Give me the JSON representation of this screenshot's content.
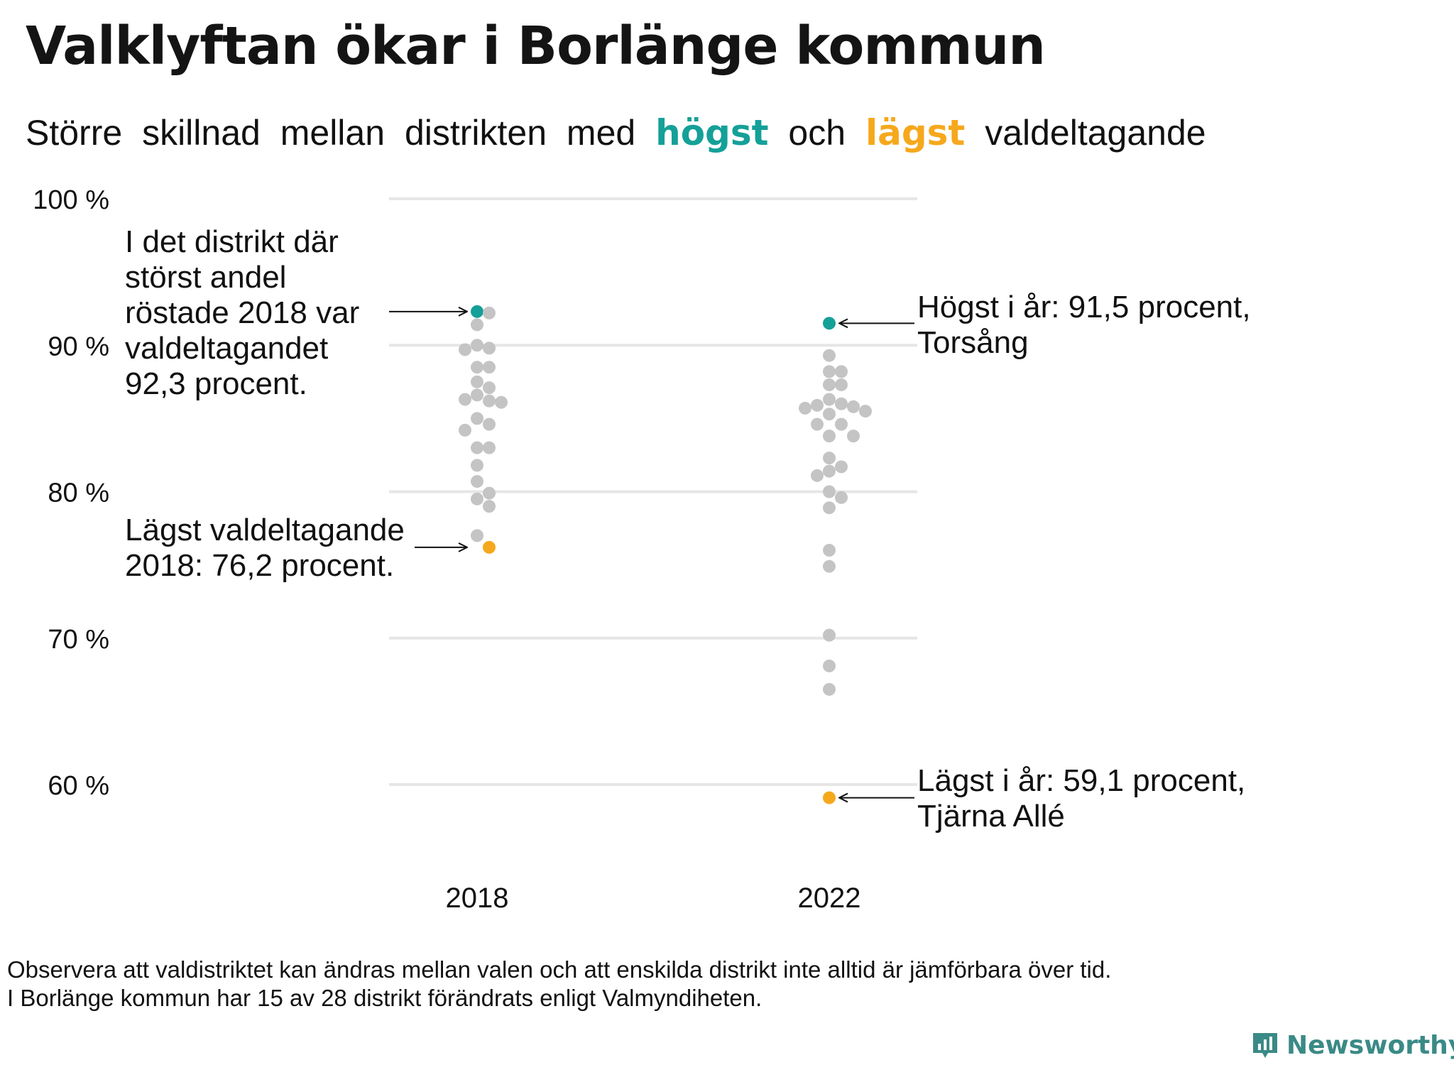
{
  "title": "Valklyftan ökar i Borlänge kommun",
  "subtitle": {
    "part1": "Större",
    "part2": "skillnad",
    "part3": "mellan",
    "part4": "distrikten",
    "part5": "med",
    "highlight_high": "högst",
    "part6": "och",
    "highlight_low": "lägst",
    "part7": "valdeltagande"
  },
  "colors": {
    "high": "#14a098",
    "low": "#f6a81c",
    "other": "#c4c4c4",
    "grid": "#e6e6e6"
  },
  "annotations": {
    "high_2018": [
      "I det distrikt där",
      "störst andel",
      "röstade 2018 var",
      "valdeltagandet",
      "92,3 procent."
    ],
    "low_2018": [
      "Lägst valdeltagande",
      "2018: 76,2 procent."
    ],
    "high_2022": [
      "Högst i år: 91,5 procent,",
      "Torsång"
    ],
    "low_2022": [
      "Lägst i år: 59,1 procent,",
      "Tjärna Allé"
    ]
  },
  "footnote": [
    "Observera att valdistriktet kan ändras mellan valen och att enskilda distrikt inte alltid är jämförbara över tid.",
    "I Borlänge kommun har 15 av 28 distrikt förändrats enligt Valmyndiheten."
  ],
  "logo": {
    "name": "Newsworthy",
    "icon": "bar-chart-icon"
  },
  "chart_data": {
    "type": "scatter",
    "title": "Valklyftan ökar i Borlänge kommun",
    "categories": [
      "2018",
      "2022"
    ],
    "ylim": [
      55,
      100
    ],
    "yticks": [
      60,
      70,
      80,
      90,
      100
    ],
    "ytick_labels": [
      "60 %",
      "70 %",
      "80 %",
      "90 %",
      "100 %"
    ],
    "grid": true,
    "series": [
      {
        "year": "2018",
        "highest": 92.3,
        "lowest": 76.2,
        "values": [
          92.3,
          92.2,
          91.4,
          90.0,
          89.8,
          89.7,
          88.5,
          88.5,
          87.5,
          87.1,
          86.6,
          86.3,
          86.2,
          86.1,
          85.0,
          84.6,
          84.2,
          83.0,
          83.0,
          81.8,
          80.7,
          79.9,
          79.5,
          79.0,
          77.0,
          76.2
        ]
      },
      {
        "year": "2022",
        "highest": 91.5,
        "lowest": 59.1,
        "values": [
          91.5,
          89.3,
          88.2,
          88.2,
          87.3,
          87.3,
          86.3,
          86.0,
          85.9,
          85.8,
          85.7,
          85.5,
          85.3,
          84.6,
          84.6,
          83.8,
          83.8,
          82.3,
          81.7,
          81.4,
          81.1,
          80.0,
          79.6,
          78.9,
          76.0,
          74.9,
          70.2,
          68.1,
          66.5,
          59.1
        ]
      }
    ]
  }
}
